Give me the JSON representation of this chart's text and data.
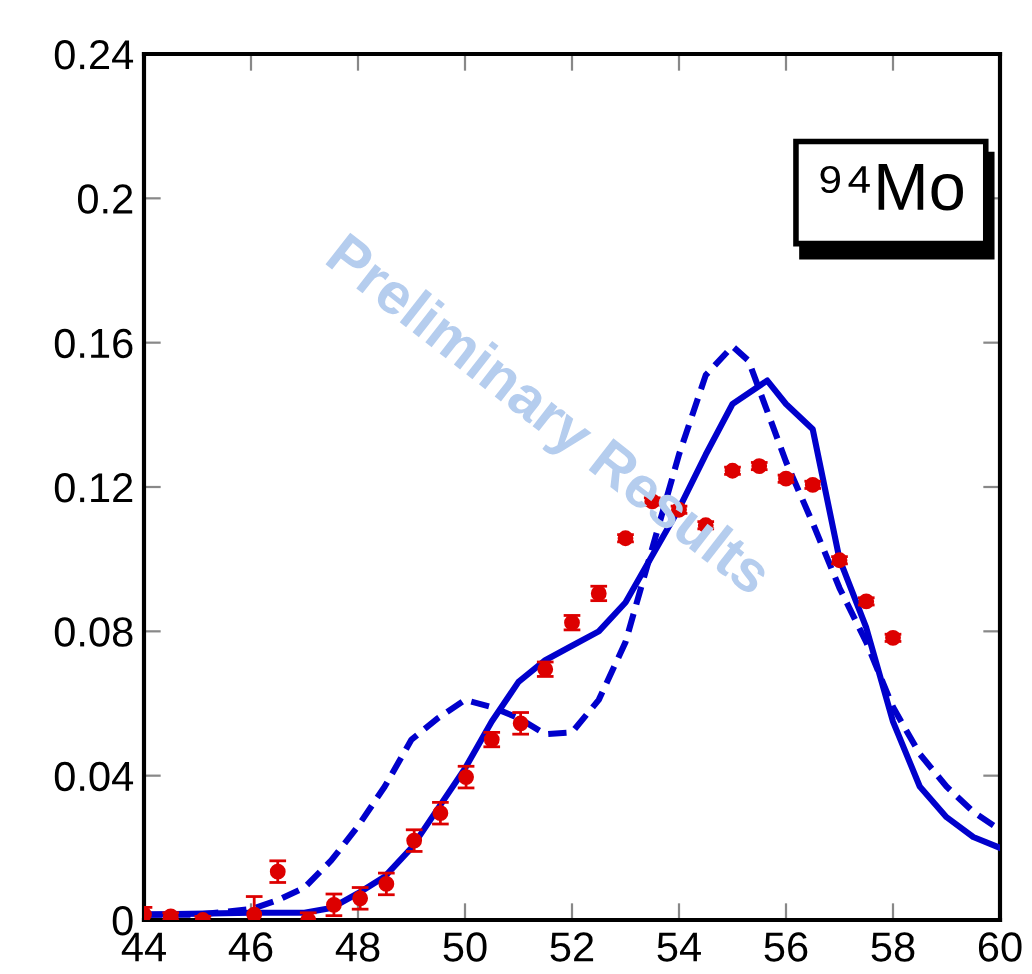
{
  "chart_data": {
    "type": "line",
    "xlim": [
      44,
      60
    ],
    "ylim": [
      0,
      0.24
    ],
    "xticks": [
      44,
      46,
      48,
      50,
      52,
      54,
      56,
      58,
      60
    ],
    "yticks": [
      0,
      0.04,
      0.08,
      0.12,
      0.16,
      0.2,
      0.24
    ],
    "grid": false,
    "annotations": [
      "⁹⁴Mo",
      "Preliminary Results"
    ],
    "series": [
      {
        "type": "scatter",
        "color": "#dd0000",
        "marker": "circle",
        "x": [
          44,
          44.5,
          45.1,
          46.06,
          46.5,
          47.07,
          47.55,
          48.04,
          48.53,
          49.05,
          49.54,
          50.02,
          50.5,
          51.04,
          51.5,
          52,
          52.5,
          53,
          53.5,
          54,
          54.5,
          55,
          55.5,
          56,
          56.5,
          57,
          57.5,
          58
        ],
        "values": [
          0.0015,
          0.001,
          0,
          0.0015,
          0.0134,
          0,
          0.0042,
          0.006,
          0.01,
          0.022,
          0.0296,
          0.0396,
          0.05,
          0.0545,
          0.0695,
          0.0824,
          0.0905,
          0.1058,
          0.116,
          0.1137,
          0.1094,
          0.1245,
          0.1258,
          0.1223,
          0.1206,
          0.0997,
          0.0883,
          0.0782
        ],
        "errors": [
          0.002,
          0.001,
          0.001,
          0.005,
          0.003,
          0.002,
          0.003,
          0.003,
          0.003,
          0.003,
          0.003,
          0.003,
          0.002,
          0.003,
          0.002,
          0.002,
          0.002,
          0.001,
          0.001,
          0.001,
          0.001,
          0.001,
          0.001,
          0.001,
          0.001,
          0.001,
          0.001,
          0.001
        ]
      },
      {
        "color": "#0000cc",
        "line_style": "solid",
        "x": [
          44,
          46,
          47,
          47.5,
          48,
          48.5,
          49,
          49.5,
          50,
          50.5,
          51,
          51.5,
          52,
          52.5,
          53,
          53.5,
          54,
          54.5,
          55,
          55.65,
          56,
          56.5,
          57,
          57.5,
          58,
          58.5,
          59,
          59.5,
          60
        ],
        "values": [
          0.0015,
          0.002,
          0.002,
          0.0033,
          0.0074,
          0.012,
          0.02,
          0.031,
          0.042,
          0.055,
          0.066,
          0.072,
          0.076,
          0.08,
          0.088,
          0.101,
          0.114,
          0.129,
          0.143,
          0.1495,
          0.143,
          0.136,
          0.1,
          0.081,
          0.055,
          0.037,
          0.0285,
          0.023,
          0.02
        ]
      },
      {
        "color": "#0000cc",
        "line_style": "dashed",
        "x": [
          44,
          45,
          46,
          46.5,
          47,
          47.5,
          48,
          48.5,
          49,
          49.5,
          50,
          50.5,
          51,
          51.5,
          52,
          52.5,
          53,
          53.5,
          54,
          54.5,
          55,
          55.3,
          55.5,
          56,
          56.5,
          57,
          57.5,
          58,
          58.5,
          59,
          59.5,
          60
        ],
        "values": [
          0.0015,
          0.0015,
          0.003,
          0.0055,
          0.009,
          0.0165,
          0.026,
          0.037,
          0.05,
          0.056,
          0.061,
          0.059,
          0.056,
          0.0515,
          0.052,
          0.061,
          0.077,
          0.103,
          0.129,
          0.151,
          0.159,
          0.155,
          0.147,
          0.127,
          0.11,
          0.092,
          0.077,
          0.059,
          0.046,
          0.037,
          0.03,
          0.025
        ]
      }
    ]
  }
}
